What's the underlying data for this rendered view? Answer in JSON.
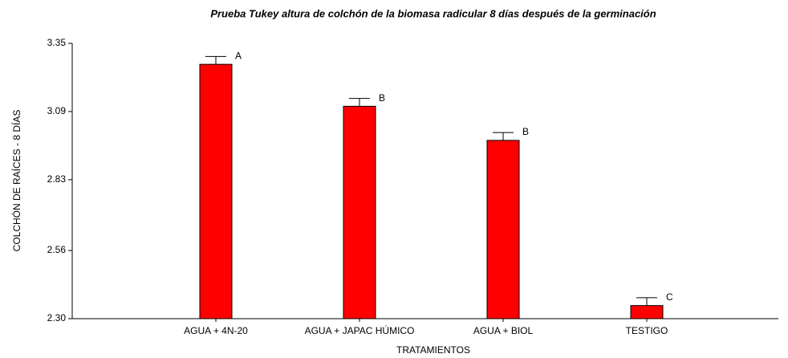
{
  "chart_data": {
    "type": "bar",
    "title": "Prueba Tukey altura de colchón de la biomasa radicular 8 días después de la germinación",
    "xlabel": "TRATAMIENTOS",
    "ylabel": "COLCHÓN DE RAÍCES - 8 DÍAS",
    "categories": [
      "AGUA + 4N-20",
      "AGUA + JAPAC HÚMICO",
      "AGUA + BIOL",
      "TESTIGO"
    ],
    "values": [
      3.27,
      3.11,
      2.98,
      2.35
    ],
    "errors": [
      0.03,
      0.03,
      0.03,
      0.03
    ],
    "letters": [
      "A",
      "B",
      "B",
      "C"
    ],
    "color": "#ff0000",
    "ylim": [
      2.3,
      3.35
    ],
    "yticks": [
      {
        "value": 2.3,
        "label": "2.30"
      },
      2.56,
      2.83,
      3.09,
      3.35
    ],
    "grid": false
  }
}
